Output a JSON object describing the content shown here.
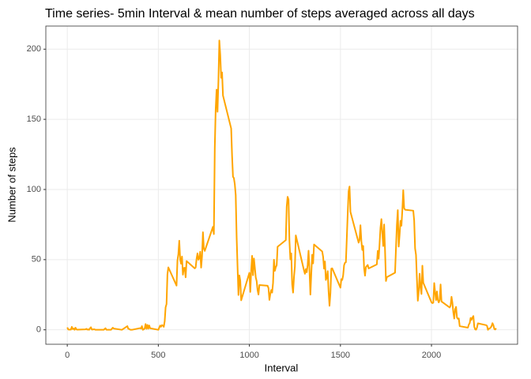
{
  "chart_data": {
    "type": "line",
    "title": "Time series- 5min Interval & mean number of steps averaged across all days",
    "x_label": "Interval",
    "y_label": "Number of steps",
    "x": [
      0,
      5,
      10,
      15,
      20,
      25,
      30,
      35,
      40,
      45,
      50,
      55,
      100,
      105,
      110,
      115,
      120,
      125,
      130,
      135,
      140,
      145,
      150,
      155,
      200,
      210,
      215,
      220,
      230,
      240,
      250,
      255,
      300,
      330,
      335,
      340,
      345,
      350,
      355,
      400,
      405,
      410,
      415,
      420,
      425,
      430,
      435,
      440,
      445,
      450,
      455,
      500,
      505,
      510,
      515,
      520,
      525,
      530,
      535,
      540,
      545,
      550,
      555,
      600,
      605,
      610,
      615,
      620,
      625,
      630,
      635,
      640,
      645,
      650,
      655,
      700,
      705,
      710,
      715,
      720,
      725,
      730,
      735,
      740,
      745,
      750,
      755,
      800,
      805,
      810,
      815,
      820,
      825,
      830,
      835,
      840,
      845,
      850,
      855,
      900,
      905,
      910,
      915,
      920,
      925,
      930,
      935,
      940,
      945,
      950,
      955,
      1000,
      1005,
      1010,
      1015,
      1020,
      1025,
      1030,
      1035,
      1040,
      1045,
      1050,
      1055,
      1100,
      1105,
      1110,
      1115,
      1120,
      1125,
      1130,
      1135,
      1140,
      1145,
      1150,
      1155,
      1200,
      1205,
      1210,
      1215,
      1220,
      1225,
      1230,
      1235,
      1240,
      1245,
      1250,
      1255,
      1300,
      1305,
      1310,
      1315,
      1320,
      1325,
      1330,
      1335,
      1340,
      1345,
      1350,
      1355,
      1400,
      1405,
      1410,
      1415,
      1420,
      1425,
      1430,
      1435,
      1440,
      1445,
      1450,
      1455,
      1500,
      1505,
      1510,
      1515,
      1520,
      1525,
      1530,
      1535,
      1540,
      1545,
      1550,
      1555,
      1600,
      1605,
      1610,
      1615,
      1620,
      1625,
      1630,
      1635,
      1640,
      1645,
      1650,
      1655,
      1700,
      1705,
      1710,
      1715,
      1720,
      1725,
      1730,
      1735,
      1740,
      1745,
      1750,
      1755,
      1800,
      1805,
      1810,
      1815,
      1820,
      1825,
      1830,
      1835,
      1840,
      1845,
      1850,
      1855,
      1900,
      1905,
      1910,
      1915,
      1920,
      1925,
      1930,
      1935,
      1940,
      1945,
      1950,
      1955,
      2000,
      2005,
      2010,
      2015,
      2020,
      2025,
      2030,
      2035,
      2040,
      2045,
      2050,
      2055,
      2100,
      2105,
      2110,
      2115,
      2120,
      2125,
      2130,
      2135,
      2140,
      2145,
      2150,
      2155,
      2200,
      2205,
      2210,
      2215,
      2220,
      2225,
      2230,
      2235,
      2240,
      2245,
      2250,
      2255,
      2300,
      2305,
      2310,
      2315,
      2320,
      2325,
      2330,
      2335,
      2340,
      2345,
      2350,
      2355
    ],
    "series": [
      {
        "color": "#FFA500",
        "values": [
          1.7,
          0.3,
          0.1,
          0.2,
          0.1,
          2.1,
          0.5,
          0.9,
          0,
          1.5,
          0.3,
          0.1,
          0.3,
          0.7,
          0.1,
          0.3,
          0,
          1.1,
          1.8,
          0.2,
          0.2,
          0.4,
          0.3,
          0,
          0,
          1.1,
          0,
          0,
          0,
          0,
          1.5,
          0.9,
          0,
          2.6,
          0.7,
          0.6,
          0.1,
          0,
          0,
          1.2,
          0.9,
          2.6,
          0,
          0.3,
          0.9,
          4.1,
          0.7,
          3.5,
          0.8,
          3.1,
          1.1,
          0,
          1.5,
          3,
          2.2,
          3.3,
          3,
          2.1,
          6.1,
          16,
          18.3,
          39.5,
          44.5,
          31.5,
          49.3,
          53.8,
          63.5,
          50,
          47.1,
          52.2,
          39.3,
          44,
          44.2,
          37.4,
          49,
          43.8,
          44.4,
          50.5,
          54.5,
          49.9,
          51,
          55.7,
          44.3,
          52.3,
          69.5,
          57.8,
          56.2,
          73.4,
          68.2,
          129.4,
          157.5,
          171.2,
          155.4,
          177.3,
          206.2,
          195.9,
          179.6,
          183.4,
          167,
          143.5,
          124,
          109.1,
          108.1,
          103.7,
          96,
          66.2,
          45.2,
          24.8,
          38.8,
          35,
          21,
          40.6,
          27,
          42.4,
          52.7,
          38.9,
          50.8,
          44.3,
          37.4,
          34.7,
          28.3,
          25.1,
          31.9,
          31.4,
          29.7,
          21.3,
          25.5,
          28.4,
          26.5,
          33.4,
          50,
          42,
          44.6,
          46,
          59.2,
          63.9,
          87.7,
          94.8,
          92.8,
          63.4,
          50.2,
          54.5,
          32.4,
          26.5,
          37.7,
          45.1,
          67.3,
          42.3,
          39.9,
          43.3,
          41,
          46.2,
          56.4,
          42.8,
          25.1,
          40,
          53.5,
          47.3,
          60.8,
          55.8,
          52,
          43.6,
          48.7,
          35.5,
          37.5,
          41.8,
          27.5,
          17.1,
          26.1,
          43.6,
          43.8,
          30,
          36.1,
          35.5,
          38.8,
          46,
          47.8,
          48.1,
          65.3,
          82.9,
          98.7,
          102.1,
          84,
          62.1,
          64.1,
          74.5,
          63.2,
          56.9,
          59.8,
          43.9,
          38.6,
          44.7,
          45.5,
          46.2,
          43.7,
          46.6,
          56.3,
          50.7,
          61.2,
          72.7,
          78.9,
          68.9,
          59.7,
          75.1,
          56.5,
          34.8,
          37.5,
          40.7,
          58,
          74.7,
          85.3,
          59.3,
          67.8,
          77.7,
          74.2,
          85.3,
          99.5,
          86.6,
          85.6,
          84.9,
          77.8,
          58,
          53.4,
          36.3,
          20.7,
          27.4,
          40,
          30.2,
          25.5,
          45.7,
          33.5,
          19.6,
          19,
          19.3,
          33.3,
          26.8,
          21.2,
          27.3,
          21.3,
          19.5,
          21.3,
          32.3,
          20.2,
          15.9,
          17.2,
          23.5,
          19.2,
          12.5,
          8,
          14.7,
          16.3,
          8.7,
          7.8,
          8.1,
          2.6,
          1.5,
          3.7,
          4.8,
          8.5,
          7.1,
          8.7,
          9.8,
          2.2,
          0.3,
          0.1,
          1.6,
          4.6,
          3.3,
          2.8,
          0,
          0.8,
          1,
          1.6,
          2.6,
          4.7,
          3.3,
          0.6,
          0.2,
          1.1
        ]
      }
    ],
    "xlim": [
      -117.75,
      2472.75
    ],
    "xticks": [
      0,
      500,
      1000,
      1500,
      2000
    ],
    "ylim": [
      -10.31,
      216.48
    ],
    "yticks": [
      0,
      50,
      100,
      150,
      200
    ],
    "grid": true
  }
}
